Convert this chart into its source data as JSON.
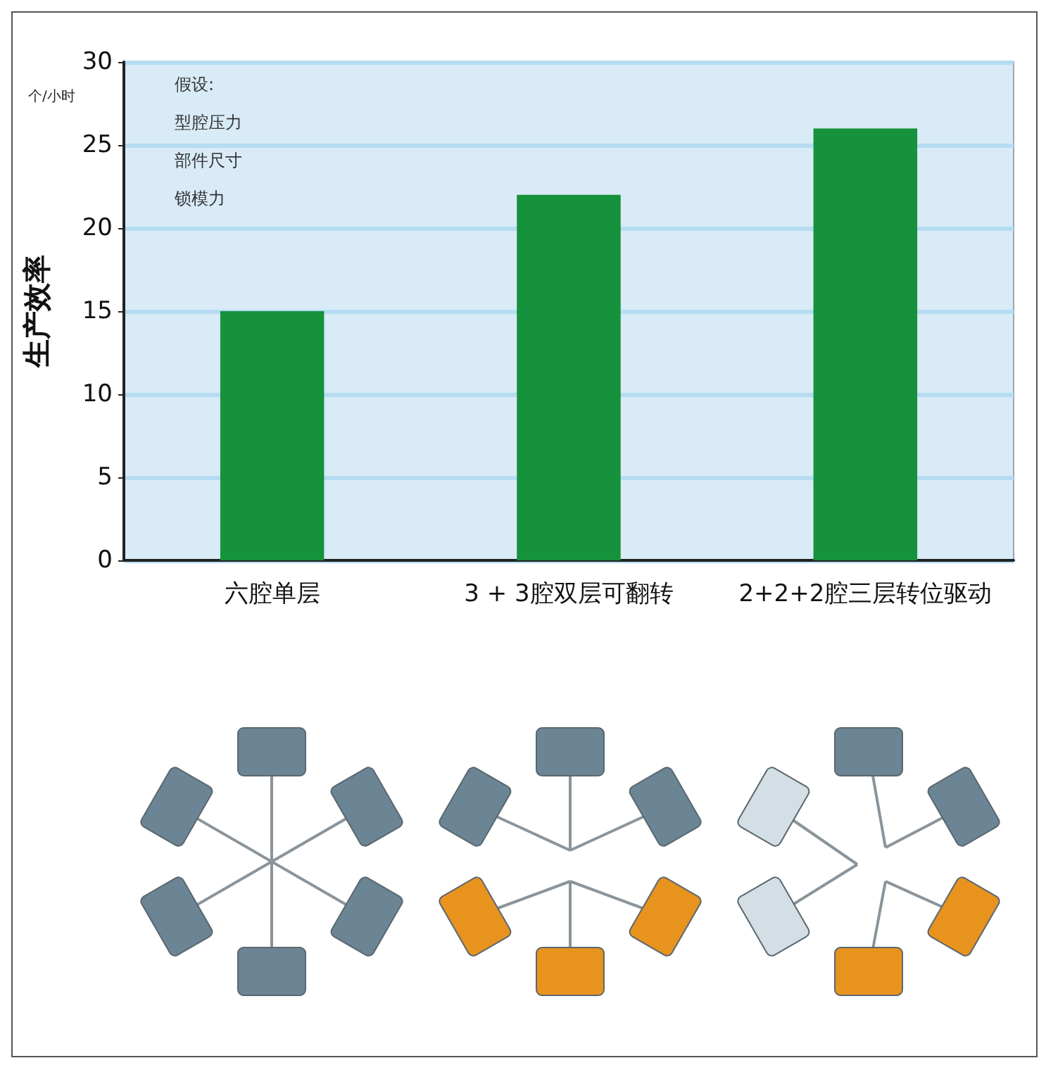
{
  "chart_data": {
    "type": "bar",
    "ylabel": "生产效率",
    "categories": [
      "六腔单层",
      "3 + 3腔双层可翻转",
      "2+2+2腔三层转位驱动"
    ],
    "values": [
      15,
      22,
      26
    ],
    "color": "#15923b",
    "ylim": [
      0,
      30
    ],
    "yticks": [
      0,
      5,
      10,
      15,
      20,
      25,
      30
    ],
    "grid": "y",
    "annotations": [
      "个/小时",
      "假设:",
      "型腔压力",
      "部件尺寸",
      "锁模力"
    ]
  }
}
